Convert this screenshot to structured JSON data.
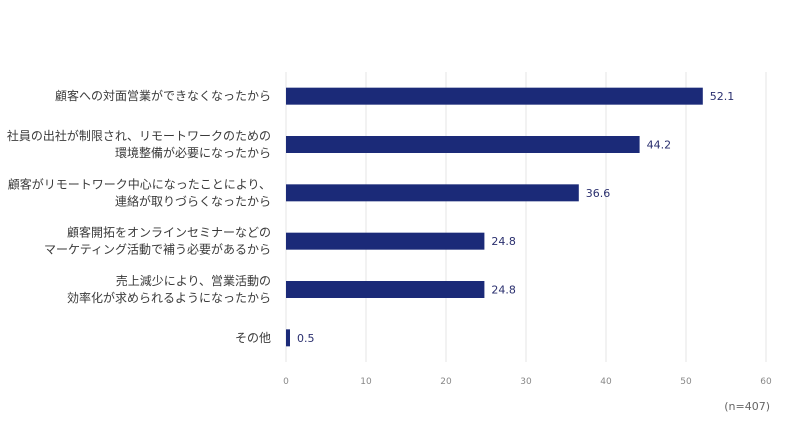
{
  "chart_data": {
    "type": "bar",
    "orientation": "horizontal",
    "categories": [
      [
        "顧客への対面営業ができなくなったから"
      ],
      [
        "社員の出社が制限され、リモートワークのための",
        "環境整備が必要になったから"
      ],
      [
        "顧客がリモートワーク中心になったことにより、",
        "連絡が取りづらくなったから"
      ],
      [
        "顧客開拓をオンラインセミナーなどの",
        "マーケティング活動で補う必要があるから"
      ],
      [
        "売上減少により、営業活動の",
        "効率化が求められるようになったから"
      ],
      [
        "その他"
      ]
    ],
    "values": [
      52.1,
      44.2,
      36.6,
      24.8,
      24.8,
      0.5
    ],
    "value_labels": [
      "52.1",
      "44.2",
      "36.6",
      "24.8",
      "24.8",
      "0.5"
    ],
    "xlim": [
      0,
      60
    ],
    "xticks": [
      "0",
      "10",
      "20",
      "30",
      "40",
      "50",
      "60"
    ],
    "grid": true,
    "bar_color": "#1b2a78",
    "note": "(n=407)"
  }
}
